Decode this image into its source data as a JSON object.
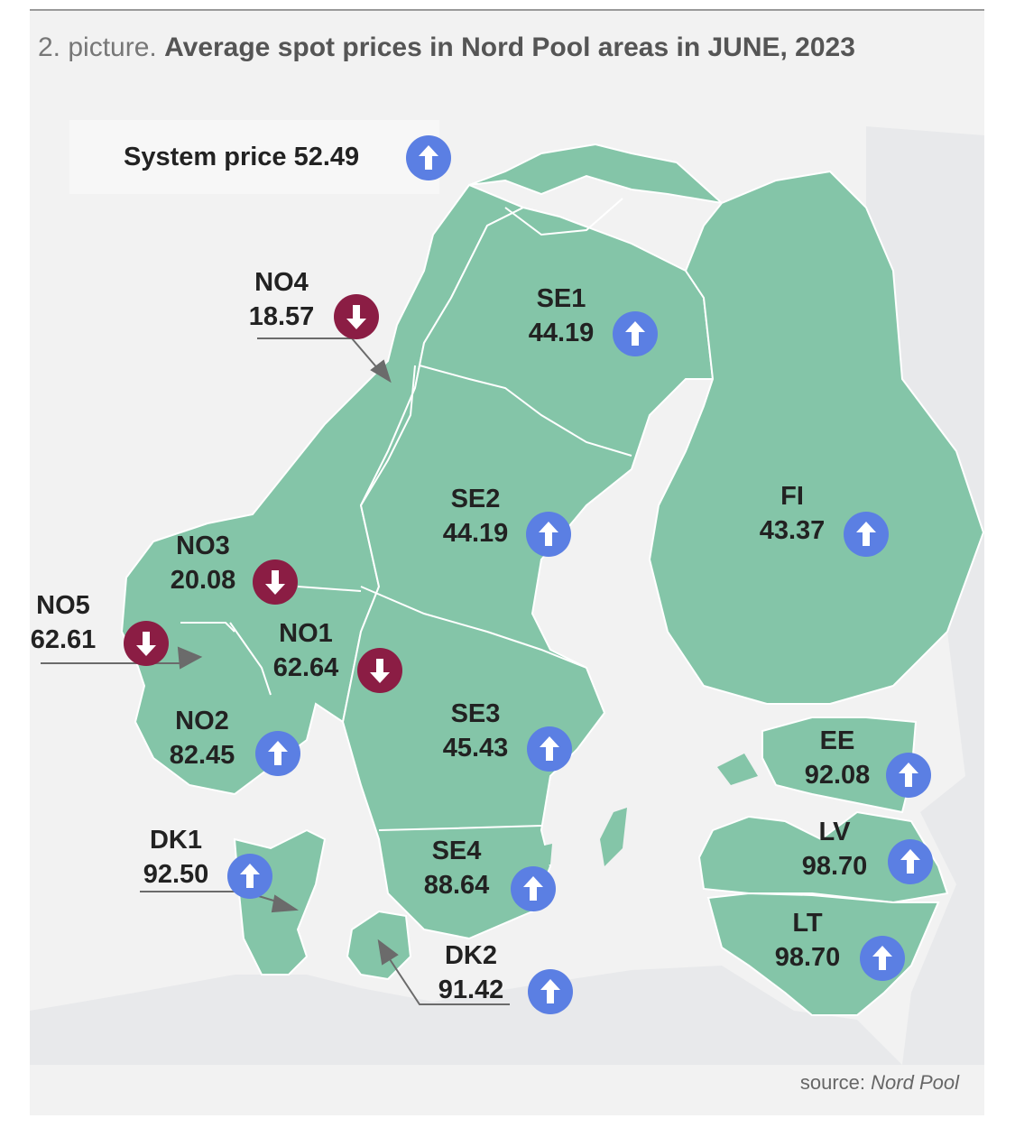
{
  "title": {
    "prefix": "2. picture.",
    "main": "Average spot prices in Nord Pool areas in JUNE, 2023"
  },
  "system_price": {
    "label": "System price 52.49",
    "trend": "up"
  },
  "source": {
    "prefix": "source:",
    "name": "Nord Pool"
  },
  "colors": {
    "land_area": "#84c5a8",
    "neighbor_land": "#e8e9eb",
    "up_arrow": "#5b7fe3",
    "down_arrow": "#8b1d44"
  },
  "areas": [
    {
      "id": "NO4",
      "name": "NO4",
      "price": "18.57",
      "trend": "down"
    },
    {
      "id": "SE1",
      "name": "SE1",
      "price": "44.19",
      "trend": "up"
    },
    {
      "id": "SE2",
      "name": "SE2",
      "price": "44.19",
      "trend": "up"
    },
    {
      "id": "FI",
      "name": "FI",
      "price": "43.37",
      "trend": "up"
    },
    {
      "id": "NO3",
      "name": "NO3",
      "price": "20.08",
      "trend": "down"
    },
    {
      "id": "NO5",
      "name": "NO5",
      "price": "62.61",
      "trend": "down"
    },
    {
      "id": "NO1",
      "name": "NO1",
      "price": "62.64",
      "trend": "down"
    },
    {
      "id": "NO2",
      "name": "NO2",
      "price": "82.45",
      "trend": "up"
    },
    {
      "id": "SE3",
      "name": "SE3",
      "price": "45.43",
      "trend": "up"
    },
    {
      "id": "EE",
      "name": "EE",
      "price": "92.08",
      "trend": "up"
    },
    {
      "id": "LV",
      "name": "LV",
      "price": "98.70",
      "trend": "up"
    },
    {
      "id": "DK1",
      "name": "DK1",
      "price": "92.50",
      "trend": "up"
    },
    {
      "id": "SE4",
      "name": "SE4",
      "price": "88.64",
      "trend": "up"
    },
    {
      "id": "LT",
      "name": "LT",
      "price": "98.70",
      "trend": "up"
    },
    {
      "id": "DK2",
      "name": "DK2",
      "price": "91.42",
      "trend": "up"
    }
  ]
}
